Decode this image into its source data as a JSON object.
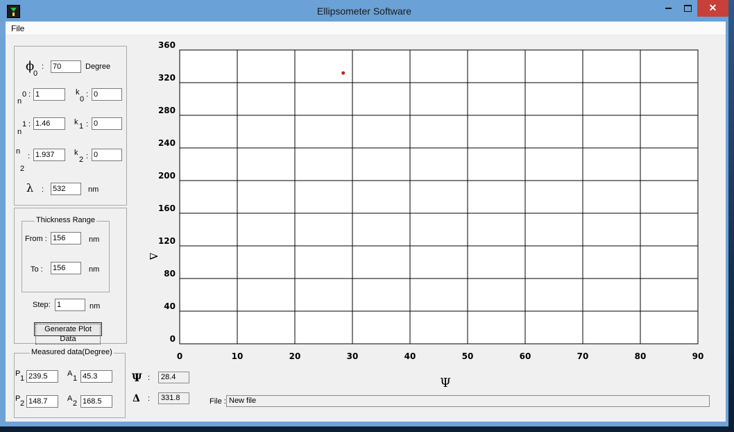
{
  "window": {
    "title": "Ellipsometer Software",
    "minimize": "minimize",
    "maximize": "maximize",
    "close": "✕"
  },
  "menu": {
    "file": "File"
  },
  "params": {
    "phi0_symbol": "ϕ",
    "phi0_sub": "0",
    "phi0_colon": ":",
    "phi0_value": "70",
    "phi0_unit": "Degree",
    "n0_label": "n",
    "n0_sup": "0",
    "n0_colon": ":",
    "n0_value": "1",
    "k0_label": "k",
    "k0_sub": "0",
    "k0_colon": ":",
    "k0_value": "0",
    "n1_label": "n",
    "n1_sup": "1",
    "n1_colon": ":",
    "n1_value": "1.46",
    "k1_label": "k",
    "k1_sub": "1",
    "k1_colon": ":",
    "k1_value": "0",
    "n2_label": "n",
    "n2_sub": "2",
    "n2_colon": ":",
    "n2_value": "1.937",
    "k2_label": "k",
    "k2_sub": "2",
    "k2_colon": ":",
    "k2_value": "0",
    "lambda_symbol": "λ",
    "lambda_colon": ":",
    "lambda_value": "532",
    "lambda_unit": "nm"
  },
  "thickness": {
    "title": "Thickness  Range",
    "from_label": "From :",
    "from_value": "156",
    "from_unit": "nm",
    "to_label": "To :",
    "to_value": "156",
    "to_unit": "nm",
    "step_label": "Step:",
    "step_value": "1",
    "step_unit": "nm",
    "generate_label": "Generate Plot Data"
  },
  "measured": {
    "title": "Measured data(Degree)",
    "p1_label": "P",
    "p1_sub": "1",
    "p1_value": "239.5",
    "a1_label": "A",
    "a1_sub": "1",
    "a1_value": "45.3",
    "p2_label": "P",
    "p2_sub": "2",
    "p2_value": "148.7",
    "a2_label": "A",
    "a2_sub": "2",
    "a2_value": "168.5"
  },
  "results": {
    "psi_symbol": "Ψ",
    "psi_colon": ":",
    "psi_value": "28.4",
    "delta_symbol": "Δ",
    "delta_colon": ":",
    "delta_value": "331.8"
  },
  "file": {
    "label": "File :",
    "value": "New file"
  },
  "chart_data": {
    "type": "scatter",
    "xlabel": "Ψ",
    "ylabel": "Δ",
    "xlim": [
      0,
      90
    ],
    "ylim": [
      0,
      360
    ],
    "x_ticks": [
      0,
      10,
      20,
      30,
      40,
      50,
      60,
      70,
      80,
      90
    ],
    "y_ticks": [
      0,
      40,
      80,
      120,
      160,
      200,
      240,
      280,
      320,
      360
    ],
    "grid": true,
    "series": [
      {
        "points": [
          {
            "x": 28.4,
            "y": 331.8
          }
        ],
        "color": "#b22a1a"
      }
    ]
  }
}
